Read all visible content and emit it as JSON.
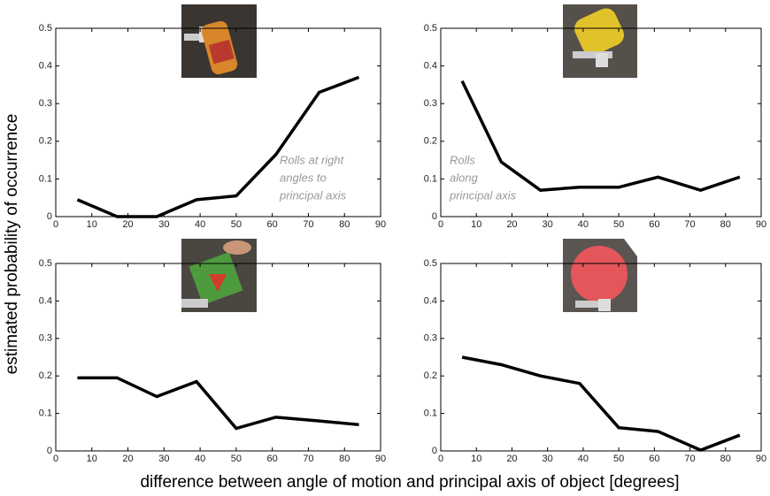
{
  "ylabel": "estimated probability of occurrence",
  "xlabel": "difference between angle of motion and principal axis of object [degrees]",
  "chart_data": [
    {
      "type": "line",
      "x": [
        6,
        17,
        28,
        39,
        50,
        61,
        73,
        84
      ],
      "values": [
        0.045,
        0,
        0,
        0.045,
        0.055,
        0.165,
        0.33,
        0.37
      ],
      "color": "#000000",
      "xlim": [
        0,
        90
      ],
      "xticks": [
        0,
        10,
        20,
        30,
        40,
        50,
        60,
        70,
        80,
        90
      ],
      "ylim": [
        0,
        0.5
      ],
      "yticks": [
        0,
        0.1,
        0.2,
        0.3,
        0.4,
        0.5
      ],
      "annotation": [
        "Rolls at right",
        "angles to",
        "principal axis"
      ]
    },
    {
      "type": "line",
      "x": [
        6,
        17,
        28,
        39,
        50,
        61,
        73,
        84
      ],
      "values": [
        0.36,
        0.145,
        0.07,
        0.078,
        0.078,
        0.105,
        0.07,
        0.105
      ],
      "color": "#000000",
      "xlim": [
        0,
        90
      ],
      "xticks": [
        0,
        10,
        20,
        30,
        40,
        50,
        60,
        70,
        80,
        90
      ],
      "ylim": [
        0,
        0.5
      ],
      "yticks": [
        0,
        0.1,
        0.2,
        0.3,
        0.4,
        0.5
      ],
      "annotation": [
        "Rolls",
        "along",
        "principal axis"
      ]
    },
    {
      "type": "line",
      "x": [
        6,
        17,
        28,
        39,
        50,
        61,
        73,
        84
      ],
      "values": [
        0.195,
        0.195,
        0.145,
        0.185,
        0.06,
        0.09,
        0.08,
        0.07
      ],
      "color": "#000000",
      "xlim": [
        0,
        90
      ],
      "xticks": [
        0,
        10,
        20,
        30,
        40,
        50,
        60,
        70,
        80,
        90
      ],
      "ylim": [
        0,
        0.5
      ],
      "yticks": [
        0,
        0.1,
        0.2,
        0.3,
        0.4,
        0.5
      ]
    },
    {
      "type": "line",
      "x": [
        6,
        17,
        28,
        39,
        50,
        61,
        73,
        84
      ],
      "values": [
        0.25,
        0.23,
        0.2,
        0.18,
        0.062,
        0.052,
        0.002,
        0.042
      ],
      "color": "#000000",
      "xlim": [
        0,
        90
      ],
      "xticks": [
        0,
        10,
        20,
        30,
        40,
        50,
        60,
        70,
        80,
        90
      ],
      "ylim": [
        0,
        0.5
      ],
      "yticks": [
        0,
        0.1,
        0.2,
        0.3,
        0.4,
        0.5
      ]
    }
  ]
}
